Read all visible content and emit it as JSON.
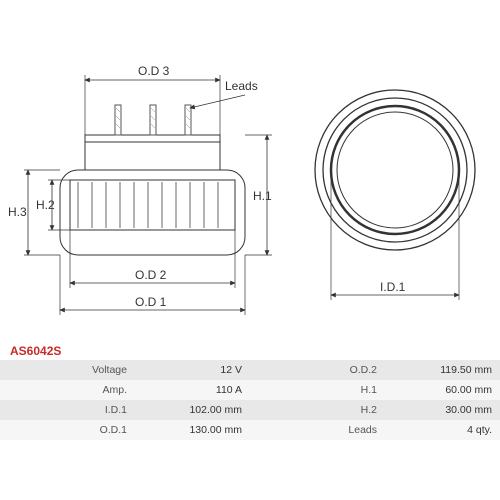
{
  "part_number": "AS6042S",
  "diagram": {
    "labels": {
      "od1": "O.D 1",
      "od2": "O.D 2",
      "od3": "O.D 3",
      "h1": "H.1",
      "h2": "H.2",
      "h3": "H.3",
      "id1": "I.D.1",
      "leads": "Leads"
    },
    "stroke_color": "#333333",
    "stroke_width": 1,
    "hatch_color": "#777777",
    "background": "#ffffff"
  },
  "specs": {
    "left": [
      {
        "label": "Voltage",
        "value": "12 V"
      },
      {
        "label": "Amp.",
        "value": "110 A"
      },
      {
        "label": "I.D.1",
        "value": "102.00 mm"
      },
      {
        "label": "O.D.1",
        "value": "130.00 mm"
      }
    ],
    "right": [
      {
        "label": "O.D.2",
        "value": "119.50 mm"
      },
      {
        "label": "H.1",
        "value": "60.00 mm"
      },
      {
        "label": "H.2",
        "value": "30.00 mm"
      },
      {
        "label": "Leads",
        "value": "4 qty."
      }
    ]
  },
  "table_colors": {
    "row_odd": "#e8e8e8",
    "row_even": "#f6f6f6",
    "label_color": "#555555",
    "value_color": "#333333"
  }
}
